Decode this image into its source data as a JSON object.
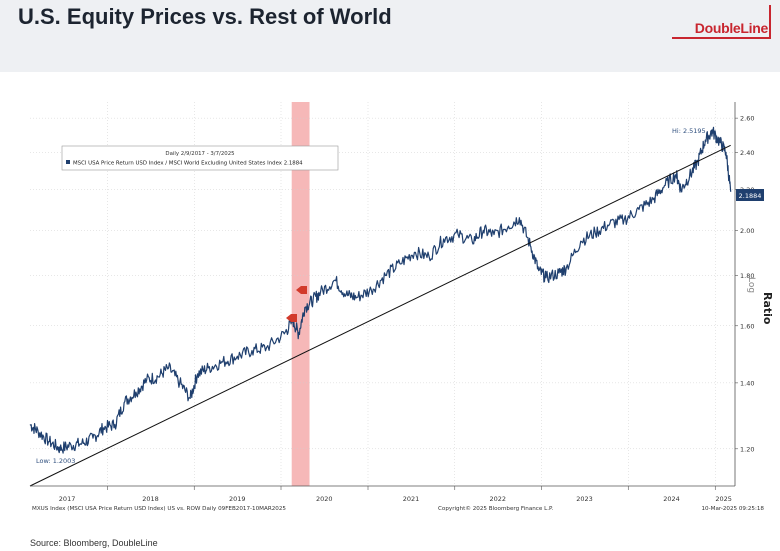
{
  "header": {
    "title": "U.S. Equity Prices vs. Rest of World",
    "logo_text": "DoubleLine",
    "logo_mark": "®"
  },
  "footer": {
    "left_note": "MXUS Index (MSCI USA Price Return USD Index) US vs. ROW  Daily 09FEB2017-10MAR2025",
    "copyright": "Copyright© 2025 Bloomberg Finance L.P.",
    "timestamp": "10-Mar-2025 09:25:18",
    "source": "Source: Bloomberg, DoubleLine"
  },
  "chart_data": {
    "type": "line",
    "y_scale": "log",
    "legend": {
      "title": "Daily 2/9/2017 - 3/7/2025",
      "entries": [
        "MSCI USA Price Return USD Index / MSCI World Excluding United States Index 2.1884"
      ]
    },
    "ylabel": "Ratio",
    "ylabel_sub": "Log",
    "ylim": [
      1.1,
      2.7
    ],
    "y_ticks": [
      "1.20",
      "1.40",
      "1.60",
      "1.80",
      "2.00",
      "2.20",
      "2.40",
      "2.60"
    ],
    "x_ticks": [
      "2017",
      "2018",
      "2019",
      "2020",
      "2021",
      "2022",
      "2023",
      "2024",
      "2025"
    ],
    "last_value_label": "2.1884",
    "annotations": {
      "high": "Hi: 2.5195",
      "low": "Low: 1.2003"
    },
    "highlight_band": {
      "from": "2020-02-15",
      "to": "2020-04-30",
      "color": "#f4a6a6"
    },
    "series": [
      {
        "name": "MSCI USA Price Return USD Index / MSCI World Excluding United States Index",
        "color": "#1f3f6e",
        "points": [
          [
            "2017-02-09",
            1.27
          ],
          [
            "2017-03-15",
            1.25
          ],
          [
            "2017-05-01",
            1.22
          ],
          [
            "2017-06-15",
            1.2003
          ],
          [
            "2017-08-01",
            1.21
          ],
          [
            "2017-09-15",
            1.215
          ],
          [
            "2017-11-01",
            1.23
          ],
          [
            "2017-12-15",
            1.26
          ],
          [
            "2018-02-01",
            1.27
          ],
          [
            "2018-03-15",
            1.34
          ],
          [
            "2018-05-01",
            1.37
          ],
          [
            "2018-06-15",
            1.41
          ],
          [
            "2018-08-01",
            1.42
          ],
          [
            "2018-09-15",
            1.45
          ],
          [
            "2018-11-01",
            1.4
          ],
          [
            "2018-12-15",
            1.35
          ],
          [
            "2019-01-15",
            1.43
          ],
          [
            "2019-03-01",
            1.45
          ],
          [
            "2019-05-01",
            1.47
          ],
          [
            "2019-07-01",
            1.49
          ],
          [
            "2019-09-01",
            1.51
          ],
          [
            "2019-11-01",
            1.52
          ],
          [
            "2020-01-15",
            1.57
          ],
          [
            "2020-02-20",
            1.62
          ],
          [
            "2020-03-15",
            1.57
          ],
          [
            "2020-04-10",
            1.67
          ],
          [
            "2020-05-15",
            1.7
          ],
          [
            "2020-06-15",
            1.73
          ],
          [
            "2020-08-15",
            1.78
          ],
          [
            "2020-10-01",
            1.72
          ],
          [
            "2020-11-15",
            1.71
          ],
          [
            "2021-01-15",
            1.74
          ],
          [
            "2021-03-15",
            1.8
          ],
          [
            "2021-05-15",
            1.85
          ],
          [
            "2021-07-15",
            1.9
          ],
          [
            "2021-09-15",
            1.88
          ],
          [
            "2021-11-15",
            1.96
          ],
          [
            "2022-01-15",
            1.98
          ],
          [
            "2022-03-15",
            1.95
          ],
          [
            "2022-05-01",
            2.0
          ],
          [
            "2022-06-15",
            1.98
          ],
          [
            "2022-08-15",
            2.02
          ],
          [
            "2022-09-30",
            2.06
          ],
          [
            "2022-11-15",
            1.93
          ],
          [
            "2022-12-20",
            1.82
          ],
          [
            "2023-01-20",
            1.79
          ],
          [
            "2023-03-15",
            1.81
          ],
          [
            "2023-04-15",
            1.83
          ],
          [
            "2023-06-15",
            1.95
          ],
          [
            "2023-08-15",
            1.99
          ],
          [
            "2023-10-15",
            2.03
          ],
          [
            "2023-12-15",
            2.05
          ],
          [
            "2024-02-15",
            2.1
          ],
          [
            "2024-04-15",
            2.15
          ],
          [
            "2024-06-01",
            2.22
          ],
          [
            "2024-07-20",
            2.28
          ],
          [
            "2024-08-10",
            2.2
          ],
          [
            "2024-09-15",
            2.27
          ],
          [
            "2024-10-20",
            2.35
          ],
          [
            "2024-11-20",
            2.47
          ],
          [
            "2024-12-20",
            2.5195
          ],
          [
            "2025-01-20",
            2.46
          ],
          [
            "2025-02-15",
            2.4
          ],
          [
            "2025-03-07",
            2.1884
          ]
        ]
      },
      {
        "name": "",
        "color": "#111111",
        "points": [
          [
            "2017-02-09",
            1.1
          ],
          [
            "2025-03-07",
            2.44
          ]
        ]
      }
    ]
  }
}
